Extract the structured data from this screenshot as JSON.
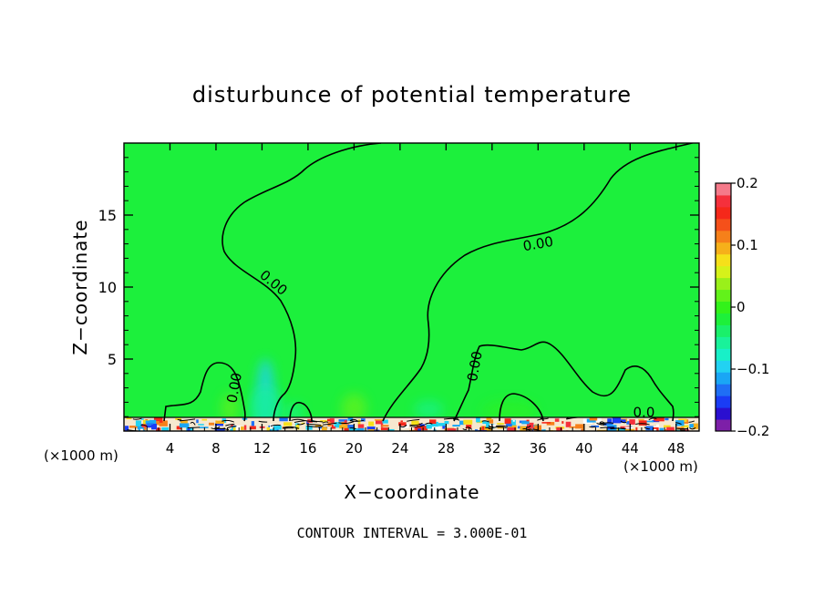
{
  "chart_data": {
    "type": "heatmap",
    "title": "disturbunce of potential temperature",
    "xlabel": "X−coordinate",
    "ylabel": "Z−coordinate",
    "x_unit": "(×1000 m)",
    "x_unit_right": "(×1000 m)",
    "xlim": [
      0,
      50
    ],
    "ylim": [
      0,
      20
    ],
    "x_ticks": [
      4,
      8,
      12,
      16,
      20,
      24,
      28,
      32,
      36,
      40,
      44,
      48
    ],
    "y_ticks": [
      5,
      10,
      15
    ],
    "colorbar": {
      "range": [
        -0.2,
        0.2
      ],
      "tick_values": [
        0.2,
        0.1,
        0,
        -0.1,
        -0.2
      ],
      "tick_labels": [
        "0.2",
        "0.1",
        "0",
        "−0.1",
        "−0.2"
      ],
      "colors": [
        "#7d1fa8",
        "#2a0fd0",
        "#1a3cf5",
        "#1f6ff5",
        "#1aa6f5",
        "#22d2f2",
        "#18f0c8",
        "#19f29a",
        "#1af06a",
        "#1df03a",
        "#32f21a",
        "#62f21a",
        "#9af01a",
        "#d6f21a",
        "#f6e01a",
        "#f6b01a",
        "#f6801a",
        "#f5501a",
        "#f5281a",
        "#f5303c",
        "#f57a8a"
      ],
      "background_level": 0
    },
    "contour_labels": [
      {
        "text": "0.00",
        "x": 13.0,
        "z": 10.3,
        "angle": 40
      },
      {
        "text": "0.00",
        "x": 36.0,
        "z": 13.0,
        "angle": -10
      },
      {
        "text": "0.00",
        "x": 9.6,
        "z": 3.0,
        "angle": -80
      },
      {
        "text": "0.00",
        "x": 30.5,
        "z": 4.5,
        "angle": -80
      },
      {
        "text": "0.0",
        "x": 45.2,
        "z": 1.3,
        "angle": 0
      }
    ],
    "annotation": "CONTOUR INTERVAL = 3.000E-01"
  }
}
